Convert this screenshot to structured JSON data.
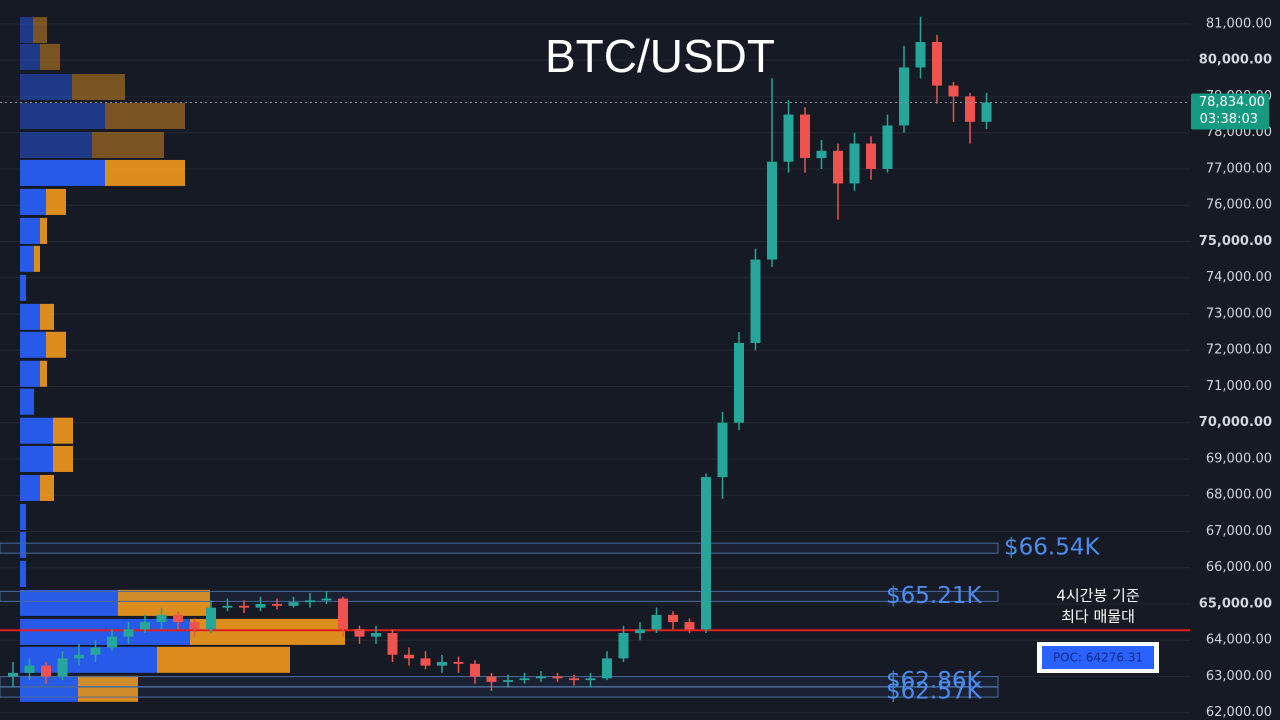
{
  "chart_data": {
    "type": "candlestick",
    "title": "BTC/USDT",
    "ylim": [
      61800,
      81660
    ],
    "yticks": [
      {
        "value": 62000,
        "label": "62,000.00"
      },
      {
        "value": 63000,
        "label": "63,000.00"
      },
      {
        "value": 64000,
        "label": "64,000.00"
      },
      {
        "value": 65000,
        "label": "65,000.00"
      },
      {
        "value": 66000,
        "label": "66,000.00"
      },
      {
        "value": 67000,
        "label": "67,000.00"
      },
      {
        "value": 68000,
        "label": "68,000.00"
      },
      {
        "value": 69000,
        "label": "69,000.00"
      },
      {
        "value": 70000,
        "label": "70,000.00"
      },
      {
        "value": 71000,
        "label": "71,000.00"
      },
      {
        "value": 72000,
        "label": "72,000.00"
      },
      {
        "value": 73000,
        "label": "73,000.00"
      },
      {
        "value": 74000,
        "label": "74,000.00"
      },
      {
        "value": 75000,
        "label": "75,000.00"
      },
      {
        "value": 76000,
        "label": "76,000.00"
      },
      {
        "value": 77000,
        "label": "77,000.00"
      },
      {
        "value": 78000,
        "label": "78,000.00"
      },
      {
        "value": 79000,
        "label": "79,000.00"
      },
      {
        "value": 80000,
        "label": "80,000.00"
      },
      {
        "value": 81000,
        "label": "81,000.00"
      }
    ],
    "grid": true,
    "up_color": "#26a69a",
    "down_color": "#ef5350",
    "candles": {
      "open": [
        63000,
        63100,
        63300,
        63000,
        63500,
        63600,
        63800,
        64100,
        64300,
        64500,
        64700,
        64500,
        64300,
        64900,
        64950,
        64900,
        65000,
        64950,
        65050,
        65100,
        65150,
        64300,
        64100,
        64200,
        63600,
        63500,
        63300,
        63400,
        63350,
        63000,
        62850,
        62900,
        62950,
        63000,
        62950,
        62900,
        62950,
        63500,
        64200,
        64300,
        64700,
        64500,
        64300,
        68500,
        70000,
        72200,
        74500,
        77200,
        78500,
        77300,
        77500,
        76600,
        77700,
        77000,
        78200,
        79800,
        80500,
        79300,
        79000,
        78300
      ],
      "high": [
        63400,
        63500,
        63400,
        63700,
        63900,
        64000,
        64300,
        64500,
        64700,
        64900,
        64800,
        64600,
        65100,
        65150,
        65100,
        65200,
        65150,
        65200,
        65300,
        65350,
        65200,
        64400,
        64400,
        64300,
        63800,
        63700,
        63600,
        63550,
        63450,
        63100,
        63050,
        63100,
        63150,
        63100,
        63050,
        63100,
        63700,
        64400,
        64500,
        64900,
        64800,
        64600,
        68600,
        70300,
        72500,
        74800,
        79500,
        78900,
        78700,
        77800,
        77700,
        78000,
        77900,
        78500,
        80400,
        81200,
        80700,
        79400,
        79100,
        79100
      ],
      "low": [
        62700,
        62900,
        62800,
        62900,
        63300,
        63400,
        63700,
        63900,
        64200,
        64300,
        64300,
        64100,
        64200,
        64800,
        64750,
        64800,
        64850,
        64900,
        64900,
        65000,
        64100,
        63900,
        63900,
        63400,
        63300,
        63200,
        63100,
        63100,
        62800,
        62600,
        62700,
        62800,
        62850,
        62850,
        62750,
        62700,
        62900,
        63400,
        64000,
        64200,
        64300,
        64200,
        64200,
        67900,
        69800,
        72000,
        74300,
        76900,
        76900,
        77000,
        75600,
        76400,
        76700,
        76900,
        78000,
        79500,
        78800,
        78300,
        77700,
        78100
      ],
      "close": [
        63100,
        63300,
        63000,
        63500,
        63600,
        63800,
        64100,
        64300,
        64500,
        64700,
        64500,
        64300,
        64900,
        64950,
        64900,
        65000,
        64950,
        65050,
        65100,
        65150,
        64300,
        64100,
        64200,
        63600,
        63500,
        63300,
        63400,
        63350,
        63000,
        62850,
        62900,
        62950,
        63000,
        62950,
        62900,
        62950,
        63500,
        64200,
        64300,
        64700,
        64500,
        64300,
        68500,
        70000,
        72200,
        74500,
        77200,
        78500,
        77300,
        77500,
        76600,
        77700,
        77000,
        78200,
        79800,
        80500,
        79300,
        79000,
        78300,
        78834
      ]
    },
    "volume_profile": {
      "buy_color": "#2962ff",
      "sell_color": "#f29a1d",
      "prices": [
        80830,
        80090,
        79260,
        78460,
        77660,
        76890,
        76090,
        75290,
        74520,
        73720,
        72920,
        72150,
        71350,
        70580,
        69780,
        69000,
        68200,
        67400,
        66630,
        65830,
        65030,
        64230,
        63460,
        62660
      ],
      "buy": [
        13,
        20,
        52,
        85,
        72,
        85,
        26,
        20,
        14,
        6,
        20,
        26,
        20,
        14,
        33,
        33,
        20,
        6,
        6,
        6,
        98,
        170,
        137,
        58
      ],
      "sell": [
        14,
        20,
        53,
        80,
        72,
        80,
        20,
        7,
        6,
        0,
        14,
        20,
        7,
        0,
        20,
        20,
        14,
        0,
        0,
        0,
        92,
        155,
        133,
        60
      ]
    },
    "levels": [
      {
        "value": 66540,
        "label": "$66.54K"
      },
      {
        "value": 65210,
        "label": "$65.21K"
      },
      {
        "value": 62860,
        "label": "$62.86K"
      },
      {
        "value": 62570,
        "label": "$62.57K"
      }
    ],
    "poc": {
      "value": 64276.31,
      "label": "POC: 64276.31"
    },
    "annotation": [
      "4시간봉 기준",
      "최다 매물대"
    ],
    "last_price": {
      "value": 78834,
      "label": "78,834.00"
    },
    "countdown": "03:38:03"
  }
}
